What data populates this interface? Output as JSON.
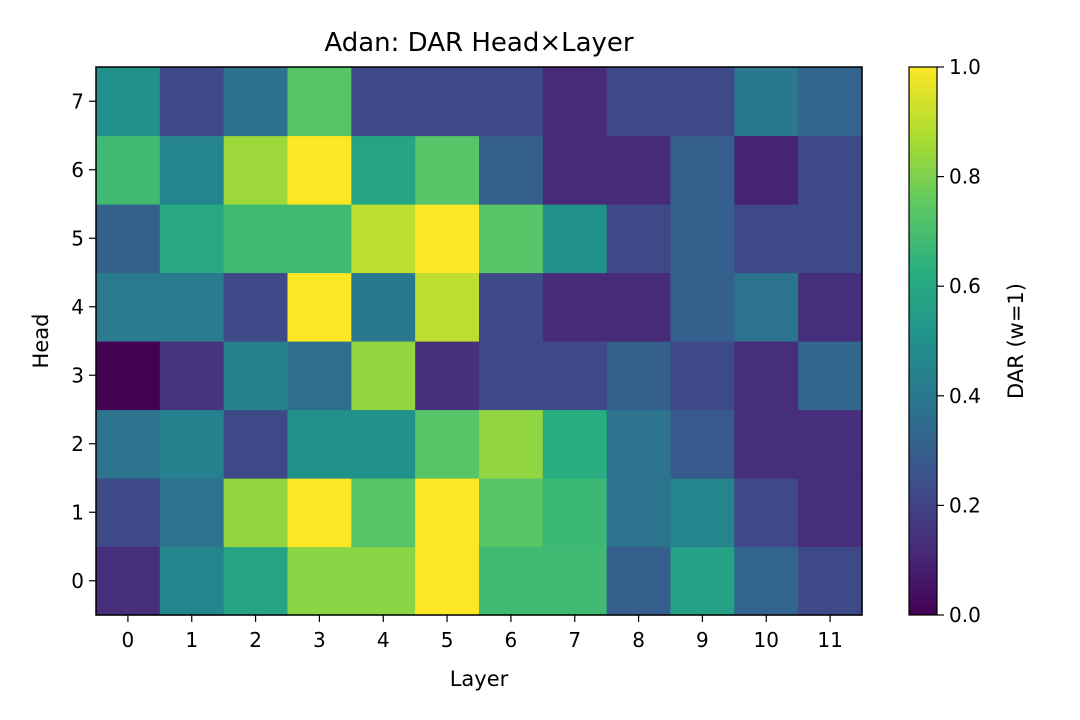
{
  "chart_data": {
    "type": "heatmap",
    "title": "Adan: DAR Head×Layer",
    "xlabel": "Layer",
    "ylabel": "Head",
    "colorbar_label": "DAR (w=1)",
    "colormap": "viridis",
    "vmin": 0.0,
    "vmax": 1.0,
    "x_ticks": [
      "0",
      "1",
      "2",
      "3",
      "4",
      "5",
      "6",
      "7",
      "8",
      "9",
      "10",
      "11"
    ],
    "y_ticks": [
      "0",
      "1",
      "2",
      "3",
      "4",
      "5",
      "6",
      "7"
    ],
    "colorbar_ticks": [
      {
        "value": 0.0,
        "label": "0.0"
      },
      {
        "value": 0.2,
        "label": "0.2"
      },
      {
        "value": 0.4,
        "label": "0.4"
      },
      {
        "value": 0.6,
        "label": "0.6"
      },
      {
        "value": 0.8,
        "label": "0.8"
      },
      {
        "value": 1.0,
        "label": "1.0"
      }
    ],
    "values_by_head": [
      [
        0.13,
        0.45,
        0.58,
        0.82,
        0.82,
        1.0,
        0.68,
        0.68,
        0.3,
        0.57,
        0.32,
        0.22
      ],
      [
        0.22,
        0.38,
        0.83,
        1.0,
        0.73,
        1.0,
        0.73,
        0.67,
        0.38,
        0.45,
        0.22,
        0.13
      ],
      [
        0.38,
        0.43,
        0.22,
        0.5,
        0.5,
        0.73,
        0.83,
        0.62,
        0.38,
        0.28,
        0.13,
        0.13
      ],
      [
        0.0,
        0.15,
        0.43,
        0.36,
        0.83,
        0.14,
        0.22,
        0.22,
        0.3,
        0.22,
        0.13,
        0.33
      ],
      [
        0.41,
        0.41,
        0.22,
        1.0,
        0.4,
        0.9,
        0.22,
        0.12,
        0.12,
        0.3,
        0.38,
        0.13
      ],
      [
        0.31,
        0.6,
        0.68,
        0.68,
        0.9,
        1.0,
        0.73,
        0.5,
        0.22,
        0.3,
        0.22,
        0.22
      ],
      [
        0.68,
        0.45,
        0.85,
        1.0,
        0.58,
        0.73,
        0.3,
        0.12,
        0.12,
        0.3,
        0.1,
        0.22
      ],
      [
        0.5,
        0.22,
        0.37,
        0.73,
        0.22,
        0.22,
        0.22,
        0.12,
        0.22,
        0.22,
        0.4,
        0.32
      ]
    ]
  }
}
